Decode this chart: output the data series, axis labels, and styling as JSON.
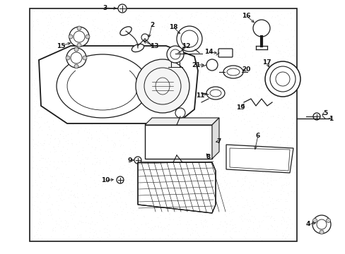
{
  "bg_color": "#ffffff",
  "box_bg": "#e8e8e8",
  "line_color": "#1a1a1a",
  "text_color": "#111111",
  "fig_width": 4.89,
  "fig_height": 3.6,
  "dpi": 100
}
